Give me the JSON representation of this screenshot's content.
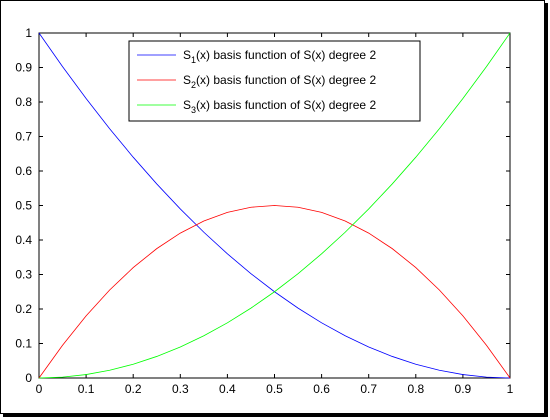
{
  "chart_data": {
    "type": "line",
    "title": "",
    "xlabel": "",
    "ylabel": "",
    "xlim": [
      0,
      1
    ],
    "ylim": [
      0,
      1
    ],
    "xticks": [
      "0",
      "0.1",
      "0.2",
      "0.3",
      "0.4",
      "0.5",
      "0.6",
      "0.7",
      "0.8",
      "0.9",
      "1"
    ],
    "yticks": [
      "0",
      "0.1",
      "0.2",
      "0.3",
      "0.4",
      "0.5",
      "0.6",
      "0.7",
      "0.8",
      "0.9",
      "1"
    ],
    "grid": false,
    "legend_position": "top-center",
    "x": [
      0,
      0.05,
      0.1,
      0.15,
      0.2,
      0.25,
      0.3,
      0.35,
      0.4,
      0.45,
      0.5,
      0.55,
      0.6,
      0.65,
      0.7,
      0.75,
      0.8,
      0.85,
      0.9,
      0.95,
      1
    ],
    "series": [
      {
        "name": "basis function of S(x) degree 2",
        "legend_main": "S",
        "legend_sub": "1",
        "legend_rest": "(x) basis function of S(x) degree 2",
        "color": "#0000ff",
        "values": [
          1,
          0.9025,
          0.81,
          0.7225,
          0.64,
          0.5625,
          0.49,
          0.4225,
          0.36,
          0.3025,
          0.25,
          0.2025,
          0.16,
          0.1225,
          0.09,
          0.0625,
          0.04,
          0.0225,
          0.01,
          0.0025,
          0
        ]
      },
      {
        "name": "basis function of S(x) degree 2",
        "legend_main": "S",
        "legend_sub": "2",
        "legend_rest": "(x) basis function of S(x) degree 2",
        "color": "#ff0000",
        "values": [
          0,
          0.095,
          0.18,
          0.255,
          0.32,
          0.375,
          0.42,
          0.455,
          0.48,
          0.495,
          0.5,
          0.495,
          0.48,
          0.455,
          0.42,
          0.375,
          0.32,
          0.255,
          0.18,
          0.095,
          0
        ]
      },
      {
        "name": "basis function of S(x) degree 2",
        "legend_main": "S",
        "legend_sub": "3",
        "legend_rest": "(x) basis function of S(x) degree 2",
        "color": "#00ff00",
        "values": [
          0,
          0.0025,
          0.01,
          0.0225,
          0.04,
          0.0625,
          0.09,
          0.1225,
          0.16,
          0.2025,
          0.25,
          0.3025,
          0.36,
          0.4225,
          0.49,
          0.5625,
          0.64,
          0.7225,
          0.81,
          0.9025,
          1
        ]
      }
    ]
  }
}
